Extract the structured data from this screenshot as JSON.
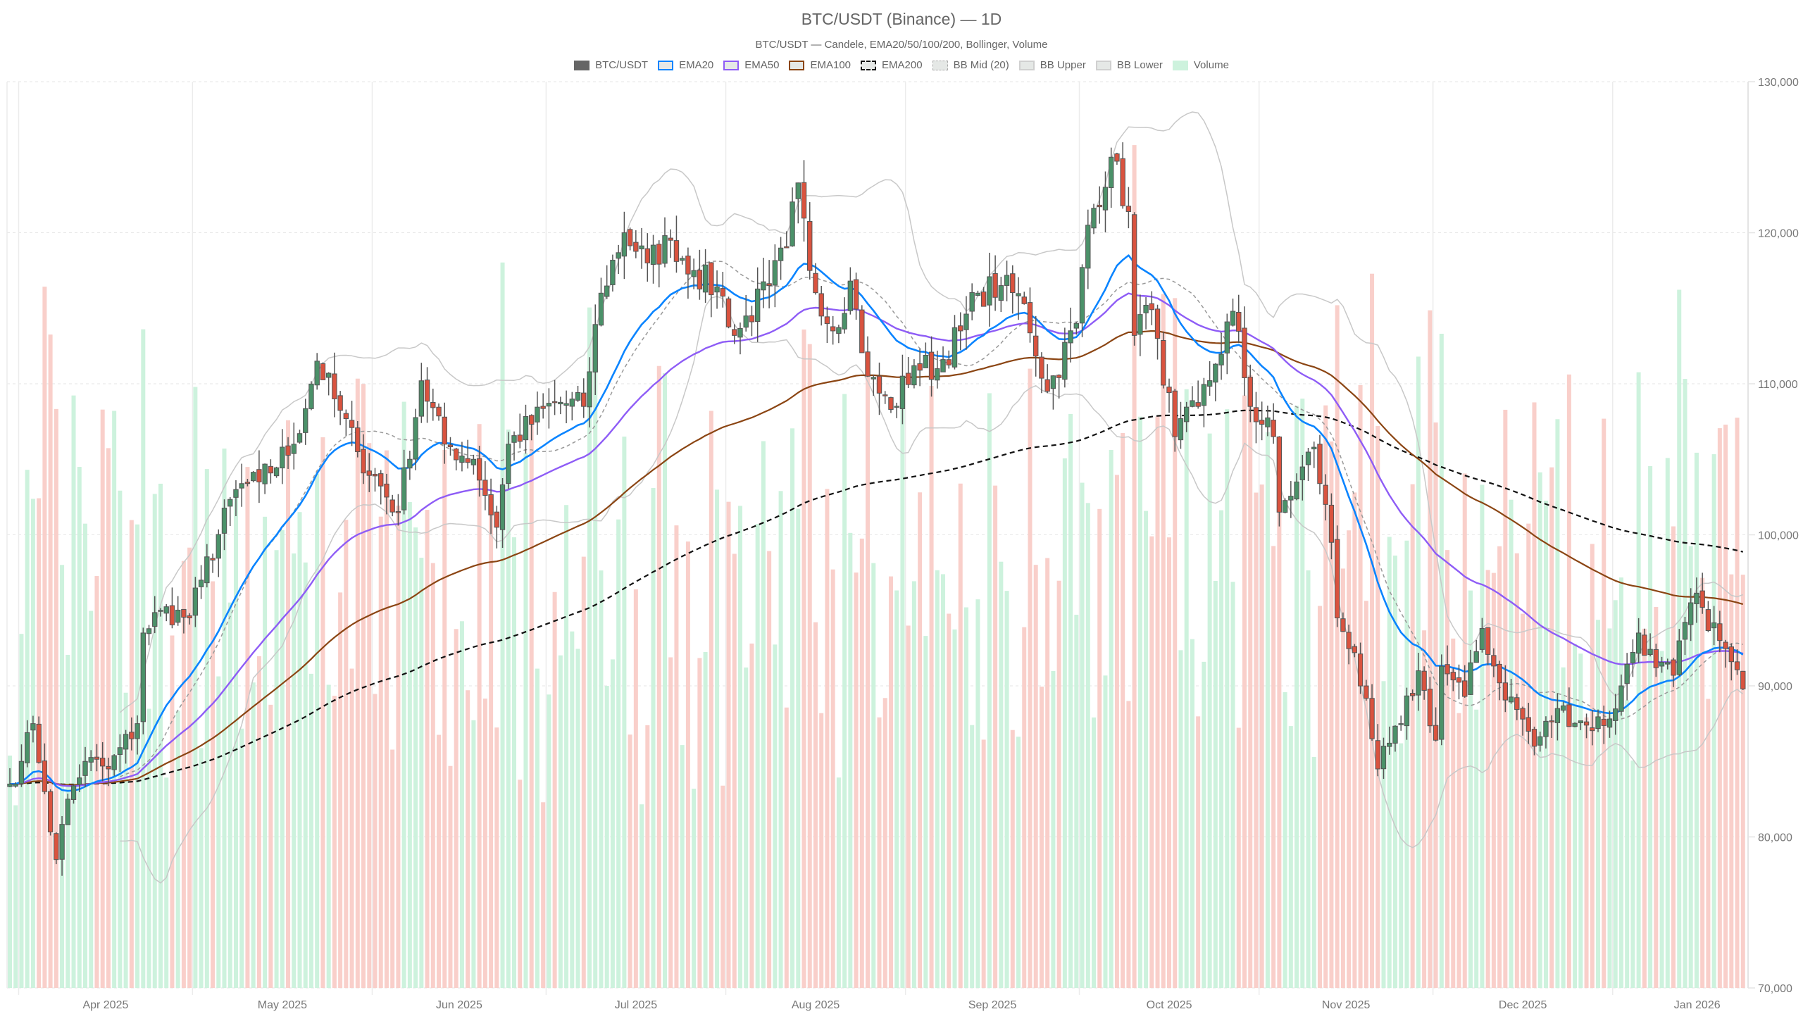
{
  "header": {
    "title": "BTC/USDT (Binance) — 1D",
    "subtitle": "BTC/USDT — Candele, EMA20/50/100/200, Bollinger, Volume"
  },
  "legend": [
    {
      "label": "BTC/USDT",
      "swatch": "solid",
      "color": "#666666",
      "fill": "#666666"
    },
    {
      "label": "EMA20",
      "swatch": "border",
      "color": "#0a84ff",
      "fill": "#e5e8e6"
    },
    {
      "label": "EMA50",
      "swatch": "border",
      "color": "#8e5cf6",
      "fill": "#e5e8e6"
    },
    {
      "label": "EMA100",
      "swatch": "border",
      "color": "#8b4513",
      "fill": "#e5e8e6"
    },
    {
      "label": "EMA200",
      "swatch": "dashed",
      "color": "#111111",
      "fill": "#e5e8e6"
    },
    {
      "label": "BB Mid (20)",
      "swatch": "dotted",
      "color": "#aaaaaa",
      "fill": "#e5e8e6"
    },
    {
      "label": "BB Upper",
      "swatch": "border",
      "color": "#d0d0d0",
      "fill": "#e5e8e6"
    },
    {
      "label": "BB Lower",
      "swatch": "border",
      "color": "#d0d0d0",
      "fill": "#e5e8e6"
    },
    {
      "label": "Volume",
      "swatch": "solid",
      "color": "#cdf2dd",
      "fill": "#cdf2dd"
    }
  ],
  "colors": {
    "up": "#4b9169",
    "down": "#d9533f",
    "wick": "#555555",
    "candle_border": "#555555",
    "vol_up": "#cdf2dd",
    "vol_down": "#f9cfca",
    "ema20": "#0a84ff",
    "ema50": "#8e5cf6",
    "ema100": "#8b4513",
    "ema200": "#111111",
    "bb": "#c8c8c8",
    "bb_mid": "#999999",
    "grid": "#e6e6e6",
    "axis_text": "#777777"
  },
  "chart_data": {
    "type": "candlestick",
    "title": "BTC/USDT (Binance) — 1D",
    "subtitle": "BTC/USDT — Candele, EMA20/50/100/200, Bollinger, Volume",
    "start_date": "2025-03-30",
    "interval": "1D",
    "y_axis": {
      "position": "right",
      "min": 70000,
      "max": 130000,
      "ticks": [
        70000,
        80000,
        90000,
        100000,
        110000,
        120000,
        130000
      ],
      "tick_labels": [
        "70,000",
        "80,000",
        "90,000",
        "100,000",
        "110,000",
        "120,000",
        "130,000"
      ],
      "grid": "dotted"
    },
    "x_axis": {
      "tick_labels": [
        "Apr 2025",
        "May 2025",
        "Jun 2025",
        "Jul 2025",
        "Aug 2025",
        "Sep 2025",
        "Oct 2025",
        "Nov 2025",
        "Dec 2025",
        "Jan 2026"
      ],
      "tick_dates": [
        "2025-04-01",
        "2025-05-01",
        "2025-06-01",
        "2025-07-01",
        "2025-08-01",
        "2025-09-01",
        "2025-10-01",
        "2025-11-01",
        "2025-12-01",
        "2026-01-01"
      ],
      "grid": "solid"
    },
    "series": [
      {
        "name": "BTC/USDT",
        "kind": "candles"
      },
      {
        "name": "EMA20",
        "kind": "line",
        "period": 20
      },
      {
        "name": "EMA50",
        "kind": "line",
        "period": 50
      },
      {
        "name": "EMA100",
        "kind": "line",
        "period": 100
      },
      {
        "name": "EMA200",
        "kind": "line",
        "period": 200,
        "dash": true
      },
      {
        "name": "BB Mid (20)",
        "kind": "line",
        "period": 20
      },
      {
        "name": "BB Upper",
        "kind": "line",
        "k": 2
      },
      {
        "name": "BB Lower",
        "kind": "line",
        "k": 2
      },
      {
        "name": "Volume",
        "kind": "bar",
        "overlay": true
      }
    ],
    "closes_anchor": [
      [
        "2025-03-30",
        83500
      ],
      [
        "2025-04-01",
        85000
      ],
      [
        "2025-04-03",
        87500
      ],
      [
        "2025-04-05",
        83000
      ],
      [
        "2025-04-07",
        78500
      ],
      [
        "2025-04-09",
        82500
      ],
      [
        "2025-04-12",
        85000
      ],
      [
        "2025-04-16",
        84500
      ],
      [
        "2025-04-21",
        87500
      ],
      [
        "2025-04-22",
        93500
      ],
      [
        "2025-04-25",
        95000
      ],
      [
        "2025-04-30",
        94500
      ],
      [
        "2025-05-02",
        97000
      ],
      [
        "2025-05-08",
        103000
      ],
      [
        "2025-05-12",
        103500
      ],
      [
        "2025-05-18",
        106000
      ],
      [
        "2025-05-22",
        111500
      ],
      [
        "2025-05-25",
        109000
      ],
      [
        "2025-05-29",
        105500
      ],
      [
        "2025-06-05",
        101500
      ],
      [
        "2025-06-09",
        110200
      ],
      [
        "2025-06-13",
        106000
      ],
      [
        "2025-06-18",
        105000
      ],
      [
        "2025-06-22",
        100500
      ],
      [
        "2025-06-24",
        106000
      ],
      [
        "2025-07-02",
        108800
      ],
      [
        "2025-07-07",
        108500
      ],
      [
        "2025-07-10",
        116000
      ],
      [
        "2025-07-14",
        120000
      ],
      [
        "2025-07-18",
        118000
      ],
      [
        "2025-07-22",
        119500
      ],
      [
        "2025-07-26",
        117500
      ],
      [
        "2025-07-31",
        115800
      ],
      [
        "2025-08-02",
        113200
      ],
      [
        "2025-08-08",
        116500
      ],
      [
        "2025-08-11",
        119000
      ],
      [
        "2025-08-13",
        123300
      ],
      [
        "2025-08-15",
        117500
      ],
      [
        "2025-08-19",
        113500
      ],
      [
        "2025-08-22",
        116800
      ],
      [
        "2025-08-25",
        110500
      ],
      [
        "2025-08-29",
        108300
      ],
      [
        "2025-09-02",
        111200
      ],
      [
        "2025-09-06",
        111000
      ],
      [
        "2025-09-10",
        113500
      ],
      [
        "2025-09-13",
        116000
      ],
      [
        "2025-09-17",
        116500
      ],
      [
        "2025-09-21",
        115300
      ],
      [
        "2025-09-25",
        109500
      ],
      [
        "2025-09-30",
        114000
      ],
      [
        "2025-10-02",
        120500
      ],
      [
        "2025-10-06",
        125000
      ],
      [
        "2025-10-09",
        121400
      ],
      [
        "2025-10-10",
        113200
      ],
      [
        "2025-10-12",
        115200
      ],
      [
        "2025-10-14",
        113000
      ],
      [
        "2025-10-17",
        106500
      ],
      [
        "2025-10-21",
        108500
      ],
      [
        "2025-10-24",
        111300
      ],
      [
        "2025-10-27",
        114800
      ],
      [
        "2025-10-30",
        108500
      ],
      [
        "2025-11-03",
        106500
      ],
      [
        "2025-11-04",
        101500
      ],
      [
        "2025-11-07",
        103500
      ],
      [
        "2025-11-10",
        105800
      ],
      [
        "2025-11-13",
        99500
      ],
      [
        "2025-11-14",
        94500
      ],
      [
        "2025-11-17",
        92200
      ],
      [
        "2025-11-20",
        86500
      ],
      [
        "2025-11-21",
        84500
      ],
      [
        "2025-11-25",
        87500
      ],
      [
        "2025-11-28",
        91000
      ],
      [
        "2025-12-01",
        86400
      ],
      [
        "2025-12-02",
        91300
      ],
      [
        "2025-12-06",
        89300
      ],
      [
        "2025-12-09",
        93800
      ],
      [
        "2025-12-12",
        90200
      ],
      [
        "2025-12-16",
        87800
      ],
      [
        "2025-12-18",
        86000
      ],
      [
        "2025-12-22",
        88500
      ],
      [
        "2025-12-27",
        87400
      ],
      [
        "2025-12-31",
        87800
      ],
      [
        "2026-01-02",
        90000
      ],
      [
        "2026-01-05",
        93500
      ],
      [
        "2026-01-08",
        91200
      ],
      [
        "2026-01-11",
        90700
      ],
      [
        "2026-01-14",
        95500
      ],
      [
        "2026-01-16",
        95200
      ],
      [
        "2026-01-19",
        93000
      ],
      [
        "2026-01-21",
        91600
      ],
      [
        "2026-01-23",
        89800
      ]
    ]
  }
}
